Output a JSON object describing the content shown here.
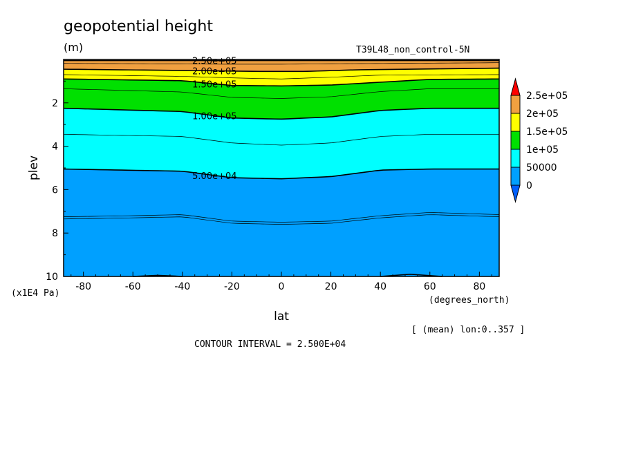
{
  "title": "geopotential height",
  "units": "(m)",
  "experiment": "T39L48_non_control-5N",
  "chart_data": {
    "type": "contour",
    "xlabel": "lat",
    "xunits": "(degrees_north)",
    "ylabel": "plev",
    "yunits": "(x1E4 Pa)",
    "xlim": [
      -88,
      88
    ],
    "ylim": [
      10,
      0
    ],
    "xticks": [
      -80,
      -60,
      -40,
      -20,
      0,
      20,
      40,
      60,
      80
    ],
    "yticks": [
      2,
      4,
      6,
      8,
      10
    ],
    "x_tick_labels": [
      "-80",
      "-60",
      "-40",
      "-20",
      "0",
      "20",
      "40",
      "60",
      "80"
    ],
    "y_tick_labels": [
      "2",
      "4",
      "6",
      "8",
      "10"
    ],
    "contour_interval": "2.500E+04",
    "contour_label_values": [
      "2.50e+05",
      "2.00e+05",
      "1.50e+05",
      "1.00e+05",
      "5.00e+04"
    ],
    "levels": [
      0,
      25000,
      50000,
      75000,
      100000,
      125000,
      150000,
      175000,
      200000,
      225000,
      250000
    ],
    "contour_lines": [
      {
        "level": 250000,
        "lat": [
          -88,
          88
        ],
        "plev": [
          0.05,
          0.05
        ]
      },
      {
        "level": 225000,
        "lat": [
          -88,
          -20,
          0,
          20,
          88
        ],
        "plev": [
          0.18,
          0.22,
          0.22,
          0.2,
          0.15
        ]
      },
      {
        "level": 200000,
        "lat": [
          -88,
          -30,
          -10,
          10,
          30,
          88
        ],
        "plev": [
          0.45,
          0.52,
          0.55,
          0.55,
          0.48,
          0.4
        ]
      },
      {
        "level": 175000,
        "lat": [
          -88,
          -40,
          -20,
          0,
          20,
          40,
          88
        ],
        "plev": [
          0.7,
          0.78,
          0.85,
          0.9,
          0.82,
          0.72,
          0.7
        ]
      },
      {
        "level": 150000,
        "lat": [
          -88,
          -40,
          -20,
          0,
          20,
          40,
          60,
          88
        ],
        "plev": [
          0.9,
          0.98,
          1.2,
          1.22,
          1.18,
          1.05,
          0.92,
          0.9
        ]
      },
      {
        "level": 125000,
        "lat": [
          -88,
          -40,
          -20,
          0,
          20,
          40,
          60,
          88
        ],
        "plev": [
          1.35,
          1.5,
          1.75,
          1.8,
          1.72,
          1.48,
          1.35,
          1.35
        ]
      },
      {
        "level": 100000,
        "lat": [
          -88,
          -40,
          -20,
          0,
          20,
          40,
          60,
          88
        ],
        "plev": [
          2.25,
          2.4,
          2.7,
          2.75,
          2.65,
          2.35,
          2.25,
          2.25
        ]
      },
      {
        "level": 75000,
        "lat": [
          -88,
          -40,
          -20,
          0,
          20,
          40,
          60,
          88
        ],
        "plev": [
          3.45,
          3.55,
          3.85,
          3.95,
          3.85,
          3.55,
          3.45,
          3.45
        ]
      },
      {
        "level": 50000,
        "lat": [
          -88,
          -40,
          -20,
          0,
          20,
          40,
          60,
          88
        ],
        "plev": [
          5.05,
          5.15,
          5.45,
          5.5,
          5.4,
          5.1,
          5.05,
          5.05
        ]
      },
      {
        "level": 25000,
        "lat": [
          -88,
          -60,
          -40,
          -20,
          0,
          20,
          40,
          60,
          88
        ],
        "plev": [
          7.25,
          7.2,
          7.15,
          7.45,
          7.5,
          7.45,
          7.2,
          7.05,
          7.15
        ]
      },
      {
        "level": 25000,
        "lat": [
          -88,
          -60,
          -40,
          -20,
          0,
          20,
          40,
          60,
          88
        ],
        "plev": [
          7.35,
          7.3,
          7.25,
          7.55,
          7.6,
          7.55,
          7.3,
          7.15,
          7.25
        ]
      },
      {
        "level": 0,
        "lat": [
          -60,
          -50,
          -40
        ],
        "plev": [
          10.0,
          9.95,
          10.0
        ]
      },
      {
        "level": 0,
        "lat": [
          40,
          52,
          65
        ],
        "plev": [
          10.0,
          9.9,
          10.0
        ]
      }
    ],
    "colorbar": {
      "labels": [
        "2.5e+05",
        "2e+05",
        "1.5e+05",
        "1e+05",
        "50000",
        "0"
      ],
      "colors": [
        "#ff0000",
        "#f0a040",
        "#ffff00",
        "#00e000",
        "#00ffff",
        "#00a0ff",
        "#0060ff"
      ]
    },
    "averaging_note": "[ (mean) lon:0..357 ]"
  },
  "contour_interval_label": "CONTOUR INTERVAL = 2.500E+04"
}
